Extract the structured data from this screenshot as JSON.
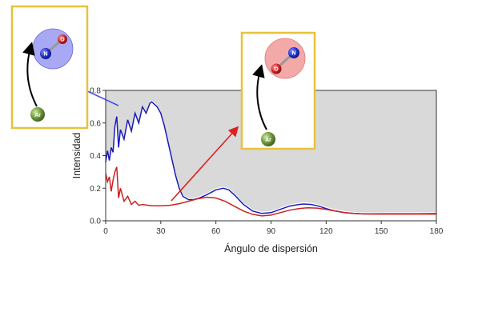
{
  "chart_data": {
    "type": "line",
    "xlabel": "Ángulo de dispersión",
    "ylabel": "Intensidad",
    "xlim": [
      0,
      180
    ],
    "ylim": [
      0,
      0.8
    ],
    "xticks": [
      0,
      30,
      60,
      90,
      120,
      150,
      180
    ],
    "yticks": [
      0.0,
      0.2,
      0.4,
      0.6,
      0.8
    ],
    "background_region": "shaded gray area above the upper envelope",
    "series": [
      {
        "color": "#1a1ab8",
        "x": [
          0,
          1,
          2,
          3,
          4,
          5,
          6,
          7,
          8,
          10,
          12,
          14,
          16,
          18,
          20,
          22,
          24,
          25,
          26,
          28,
          30,
          32,
          34,
          36,
          38,
          40,
          42,
          45,
          48,
          51,
          55,
          60,
          64,
          67,
          70,
          75,
          80,
          85,
          90,
          95,
          100,
          105,
          108,
          112,
          116,
          120,
          125,
          130,
          135,
          140,
          145,
          150,
          160,
          170,
          180
        ],
        "y": [
          0.36,
          0.43,
          0.37,
          0.45,
          0.42,
          0.58,
          0.64,
          0.45,
          0.56,
          0.5,
          0.62,
          0.55,
          0.66,
          0.6,
          0.7,
          0.66,
          0.72,
          0.73,
          0.72,
          0.7,
          0.66,
          0.58,
          0.48,
          0.38,
          0.28,
          0.2,
          0.15,
          0.13,
          0.13,
          0.14,
          0.16,
          0.19,
          0.2,
          0.19,
          0.16,
          0.1,
          0.06,
          0.045,
          0.05,
          0.07,
          0.09,
          0.1,
          0.103,
          0.1,
          0.09,
          0.075,
          0.06,
          0.05,
          0.045,
          0.042,
          0.042,
          0.043,
          0.043,
          0.043,
          0.044
        ]
      },
      {
        "color": "#cc2222",
        "x": [
          0,
          1,
          2,
          3,
          4,
          5,
          6,
          7,
          8,
          10,
          12,
          14,
          16,
          18,
          20,
          25,
          30,
          35,
          40,
          45,
          50,
          55,
          60,
          65,
          70,
          75,
          80,
          85,
          90,
          95,
          100,
          105,
          110,
          115,
          120,
          125,
          130,
          135,
          140,
          150,
          160,
          170,
          180
        ],
        "y": [
          0.29,
          0.24,
          0.27,
          0.18,
          0.25,
          0.3,
          0.33,
          0.14,
          0.2,
          0.12,
          0.15,
          0.1,
          0.12,
          0.095,
          0.1,
          0.092,
          0.092,
          0.095,
          0.105,
          0.12,
          0.135,
          0.145,
          0.14,
          0.12,
          0.09,
          0.06,
          0.04,
          0.03,
          0.035,
          0.05,
          0.065,
          0.075,
          0.08,
          0.078,
          0.07,
          0.06,
          0.05,
          0.045,
          0.042,
          0.041,
          0.041,
          0.041,
          0.041
        ]
      }
    ],
    "insets": [
      {
        "id": "blue-inset",
        "theme_color": "#5a5ae8",
        "atoms": [
          {
            "label": "N",
            "color": "#1f2fc8"
          },
          {
            "label": "O",
            "color": "#cc2222"
          },
          {
            "label": "Ar",
            "color": "#5f8a36"
          }
        ]
      },
      {
        "id": "red-inset",
        "theme_color": "#e85a5a",
        "atoms": [
          {
            "label": "N",
            "color": "#1f2fc8"
          },
          {
            "label": "O",
            "color": "#cc2222"
          },
          {
            "label": "Ar",
            "color": "#5f8a36"
          }
        ]
      }
    ]
  }
}
